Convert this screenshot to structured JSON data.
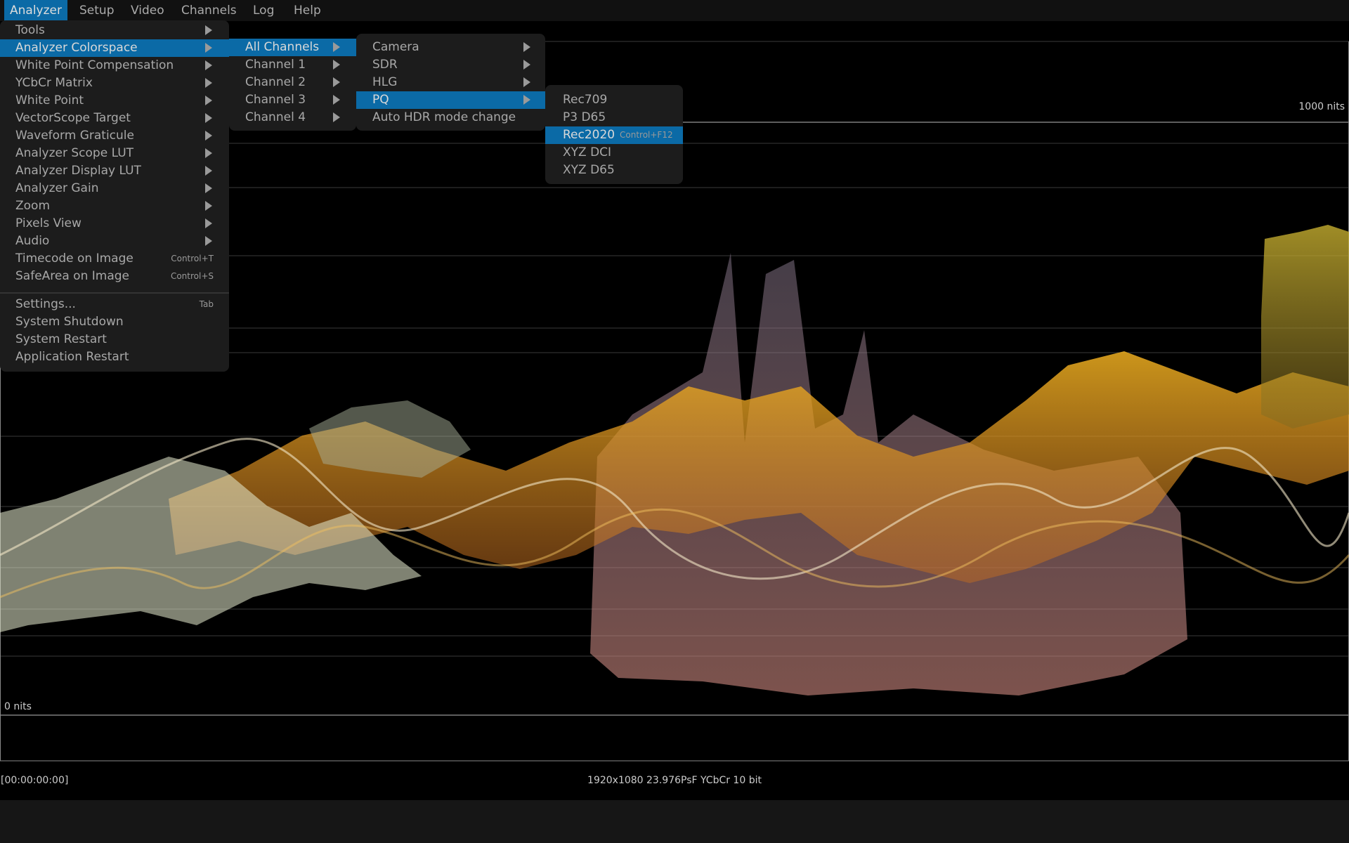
{
  "menu_bar": {
    "items": [
      "Analyzer",
      "Setup",
      "Video",
      "Channels",
      "Log",
      "Help"
    ]
  },
  "menus": [
    {
      "items": [
        {
          "label": "Tools"
        },
        {
          "label": "Analyzer Colorspace"
        },
        {
          "label": "White Point Compensation"
        },
        {
          "label": "YCbCr Matrix"
        },
        {
          "label": "White Point"
        },
        {
          "label": "VectorScope Target"
        },
        {
          "label": "Waveform Graticule"
        },
        {
          "label": "Analyzer Scope LUT"
        },
        {
          "label": "Analyzer Display LUT"
        },
        {
          "label": "Analyzer Gain"
        },
        {
          "label": "Zoom"
        },
        {
          "label": "Pixels View"
        },
        {
          "label": "Audio"
        },
        {
          "label": "Timecode on Image",
          "shortcut": "Control+T"
        },
        {
          "label": "SafeArea on Image",
          "shortcut": "Control+S"
        },
        {
          "label": "Settings...",
          "shortcut": "Tab"
        },
        {
          "label": "System Shutdown"
        },
        {
          "label": "System Restart"
        },
        {
          "label": "Application Restart"
        }
      ]
    },
    {
      "items": [
        {
          "label": "All Channels"
        },
        {
          "label": "Channel 1"
        },
        {
          "label": "Channel 2"
        },
        {
          "label": "Channel 3"
        },
        {
          "label": "Channel 4"
        }
      ]
    },
    {
      "items": [
        {
          "label": "Camera"
        },
        {
          "label": "SDR"
        },
        {
          "label": "HLG"
        },
        {
          "label": "PQ"
        },
        {
          "label": "Auto HDR mode change"
        }
      ]
    },
    {
      "items": [
        {
          "label": "Rec709"
        },
        {
          "label": "P3 D65"
        },
        {
          "label": "Rec2020",
          "shortcut": "Control+F12"
        },
        {
          "label": "XYZ DCI"
        },
        {
          "label": "XYZ D65"
        }
      ]
    }
  ],
  "scope": {
    "top_label": "1000 nits",
    "bottom_label": "0 nits"
  },
  "status": {
    "timecode": "[00:00:00:00]",
    "format": "1920x1080 23.976PsF YCbCr 10 bit"
  }
}
